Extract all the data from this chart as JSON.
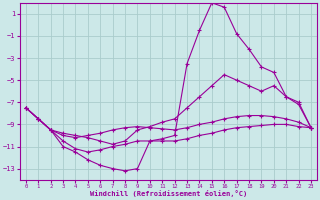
{
  "xlabel": "Windchill (Refroidissement éolien,°C)",
  "bg_color": "#cce8e8",
  "grid_color": "#aacccc",
  "line_color": "#990099",
  "xlim": [
    -0.5,
    23.5
  ],
  "ylim": [
    -14,
    2
  ],
  "yticks": [
    1,
    -1,
    -3,
    -5,
    -7,
    -9,
    -11,
    -13
  ],
  "xticks": [
    0,
    1,
    2,
    3,
    4,
    5,
    6,
    7,
    8,
    9,
    10,
    11,
    12,
    13,
    14,
    15,
    16,
    17,
    18,
    19,
    20,
    21,
    22,
    23
  ],
  "c1_x": [
    0,
    1,
    2,
    3,
    4,
    5,
    6,
    7,
    8,
    9,
    10,
    11,
    12,
    13,
    14,
    15,
    16,
    17,
    18,
    19,
    20,
    21,
    22,
    23
  ],
  "c1_y": [
    -7.5,
    -8.5,
    -9.5,
    -11.0,
    -11.5,
    -12.2,
    -12.7,
    -13.0,
    -13.2,
    -13.0,
    -10.5,
    -10.3,
    -10.0,
    -3.5,
    -0.5,
    2.0,
    1.6,
    -0.8,
    -2.2,
    -3.8,
    -4.3,
    -6.5,
    -7.2,
    -9.3
  ],
  "c2_x": [
    0,
    1,
    2,
    3,
    4,
    5,
    6,
    7,
    8,
    9,
    10,
    11,
    12,
    13,
    14,
    15,
    16,
    17,
    18,
    19,
    20,
    21,
    22,
    23
  ],
  "c2_y": [
    -7.5,
    -8.5,
    -9.5,
    -10.0,
    -10.2,
    -10.0,
    -9.8,
    -9.5,
    -9.3,
    -9.2,
    -9.3,
    -9.4,
    -9.5,
    -9.3,
    -9.0,
    -8.8,
    -8.5,
    -8.3,
    -8.2,
    -8.2,
    -8.3,
    -8.5,
    -8.8,
    -9.3
  ],
  "c3_x": [
    0,
    1,
    2,
    3,
    4,
    5,
    6,
    7,
    8,
    9,
    10,
    11,
    12,
    13,
    14,
    15,
    16,
    17,
    18,
    19,
    20,
    21,
    22,
    23
  ],
  "c3_y": [
    -7.5,
    -8.5,
    -9.5,
    -9.8,
    -10.0,
    -10.2,
    -10.5,
    -10.8,
    -10.5,
    -9.5,
    -9.2,
    -8.8,
    -8.5,
    -7.5,
    -6.5,
    -5.5,
    -4.5,
    -5.0,
    -5.5,
    -6.0,
    -5.5,
    -6.5,
    -7.0,
    -9.3
  ],
  "c4_x": [
    0,
    1,
    2,
    3,
    4,
    5,
    6,
    7,
    8,
    9,
    10,
    11,
    12,
    13,
    14,
    15,
    16,
    17,
    18,
    19,
    20,
    21,
    22,
    23
  ],
  "c4_y": [
    -7.5,
    -8.5,
    -9.5,
    -10.5,
    -11.2,
    -11.5,
    -11.3,
    -11.0,
    -10.8,
    -10.5,
    -10.5,
    -10.5,
    -10.5,
    -10.3,
    -10.0,
    -9.8,
    -9.5,
    -9.3,
    -9.2,
    -9.1,
    -9.0,
    -9.0,
    -9.2,
    -9.3
  ]
}
